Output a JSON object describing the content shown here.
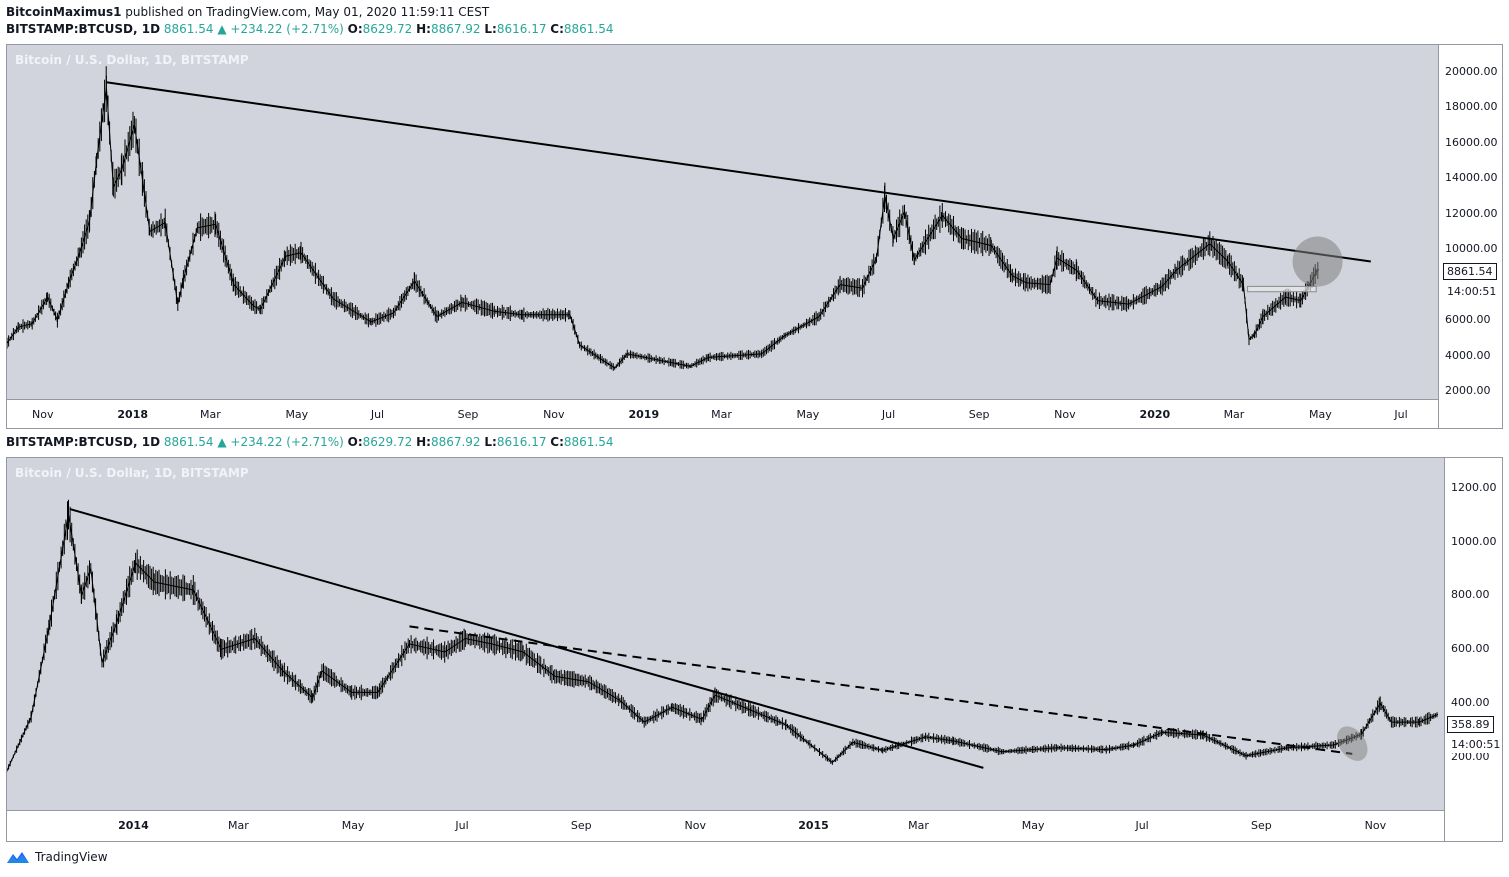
{
  "header": {
    "author": "BitcoinMaximus1",
    "published": "published on TradingView.com, May 01, 2020 11:59:11 CEST"
  },
  "symbol_line": {
    "symbol": "BITSTAMP:BTCUSD, 1D",
    "last": "8861.54",
    "arrow": "▲",
    "change": "+234.22 (+2.71%)",
    "o_label": "O:",
    "o": "8629.72",
    "h_label": "H:",
    "h": "8867.92",
    "l_label": "L:",
    "l": "8616.17",
    "c_label": "C:",
    "c": "8861.54"
  },
  "footer": {
    "brand": "TradingView"
  },
  "colors": {
    "panel_bg": "#d1d4dc",
    "candle": "#000000",
    "value": "#26a69a",
    "circle": "#808080"
  },
  "chart_data": [
    {
      "type": "line",
      "title": "Bitcoin / U.S. Dollar, 1D, BITSTAMP",
      "price_label": "8861.54",
      "countdown": "14:00:51",
      "ylim": [
        1500,
        21500
      ],
      "y_ticks": [
        "20000.00",
        "18000.00",
        "16000.00",
        "14000.00",
        "12000.00",
        "10000.00",
        "6000.00",
        "4000.00",
        "2000.00"
      ],
      "x_ticks": [
        {
          "label": "Nov",
          "date": "2017-11-01",
          "bold": false
        },
        {
          "label": "2018",
          "date": "2018-01-01",
          "bold": true
        },
        {
          "label": "Mar",
          "date": "2018-03-01",
          "bold": false
        },
        {
          "label": "May",
          "date": "2018-05-01",
          "bold": false
        },
        {
          "label": "Jul",
          "date": "2018-07-01",
          "bold": false
        },
        {
          "label": "Sep",
          "date": "2018-09-01",
          "bold": false
        },
        {
          "label": "Nov",
          "date": "2018-11-01",
          "bold": false
        },
        {
          "label": "2019",
          "date": "2019-01-01",
          "bold": true
        },
        {
          "label": "Mar",
          "date": "2019-03-01",
          "bold": false
        },
        {
          "label": "May",
          "date": "2019-05-01",
          "bold": false
        },
        {
          "label": "Jul",
          "date": "2019-07-01",
          "bold": false
        },
        {
          "label": "Sep",
          "date": "2019-09-01",
          "bold": false
        },
        {
          "label": "Nov",
          "date": "2019-11-01",
          "bold": false
        },
        {
          "label": "2020",
          "date": "2020-01-01",
          "bold": true
        },
        {
          "label": "Mar",
          "date": "2020-03-01",
          "bold": false
        },
        {
          "label": "May",
          "date": "2020-05-01",
          "bold": false
        },
        {
          "label": "Jul",
          "date": "2020-07-01",
          "bold": false
        }
      ],
      "xlim": [
        "2017-10-07",
        "2020-07-25"
      ],
      "series": [
        {
          "points": [
            [
              "2017-10-07",
              4700
            ],
            [
              "2017-10-15",
              5600
            ],
            [
              "2017-10-25",
              5800
            ],
            [
              "2017-11-05",
              7300
            ],
            [
              "2017-11-12",
              6000
            ],
            [
              "2017-11-20",
              8100
            ],
            [
              "2017-11-28",
              9800
            ],
            [
              "2017-12-05",
              11600
            ],
            [
              "2017-12-10",
              15000
            ],
            [
              "2017-12-17",
              19100
            ],
            [
              "2017-12-22",
              13500
            ],
            [
              "2017-12-28",
              14500
            ],
            [
              "2018-01-06",
              17000
            ],
            [
              "2018-01-12",
              13800
            ],
            [
              "2018-01-17",
              11000
            ],
            [
              "2018-01-28",
              11500
            ],
            [
              "2018-02-06",
              6900
            ],
            [
              "2018-02-10",
              8300
            ],
            [
              "2018-02-20",
              11200
            ],
            [
              "2018-03-05",
              11400
            ],
            [
              "2018-03-18",
              8000
            ],
            [
              "2018-04-01",
              6800
            ],
            [
              "2018-04-06",
              6600
            ],
            [
              "2018-04-24",
              9600
            ],
            [
              "2018-05-05",
              9800
            ],
            [
              "2018-05-28",
              7200
            ],
            [
              "2018-06-24",
              5900
            ],
            [
              "2018-07-10",
              6400
            ],
            [
              "2018-07-25",
              8200
            ],
            [
              "2018-08-10",
              6200
            ],
            [
              "2018-08-28",
              7000
            ],
            [
              "2018-09-20",
              6500
            ],
            [
              "2018-10-10",
              6300
            ],
            [
              "2018-11-13",
              6300
            ],
            [
              "2018-11-20",
              4600
            ],
            [
              "2018-12-15",
              3300
            ],
            [
              "2018-12-24",
              4100
            ],
            [
              "2019-01-25",
              3600
            ],
            [
              "2019-02-07",
              3400
            ],
            [
              "2019-02-20",
              3900
            ],
            [
              "2019-03-30",
              4100
            ],
            [
              "2019-04-15",
              5100
            ],
            [
              "2019-05-10",
              6200
            ],
            [
              "2019-05-25",
              8000
            ],
            [
              "2019-06-10",
              7800
            ],
            [
              "2019-06-20",
              9500
            ],
            [
              "2019-06-26",
              13000
            ],
            [
              "2019-07-02",
              10600
            ],
            [
              "2019-07-10",
              12100
            ],
            [
              "2019-07-17",
              9400
            ],
            [
              "2019-08-06",
              11900
            ],
            [
              "2019-08-20",
              10600
            ],
            [
              "2019-09-10",
              10200
            ],
            [
              "2019-09-25",
              8500
            ],
            [
              "2019-10-05",
              8100
            ],
            [
              "2019-10-22",
              8000
            ],
            [
              "2019-10-27",
              9500
            ],
            [
              "2019-11-10",
              8800
            ],
            [
              "2019-11-25",
              7100
            ],
            [
              "2019-12-17",
              6900
            ],
            [
              "2020-01-10",
              7900
            ],
            [
              "2020-01-20",
              8800
            ],
            [
              "2020-02-13",
              10300
            ],
            [
              "2020-02-26",
              9300
            ],
            [
              "2020-03-08",
              8000
            ],
            [
              "2020-03-12",
              4900
            ],
            [
              "2020-03-16",
              5200
            ],
            [
              "2020-03-22",
              6200
            ],
            [
              "2020-04-07",
              7300
            ],
            [
              "2020-04-18",
              7100
            ],
            [
              "2020-04-29",
              8700
            ],
            [
              "2020-05-01",
              8861
            ]
          ]
        }
      ],
      "annotations": {
        "trendline": {
          "from": [
            "2017-12-17",
            19400
          ],
          "to": [
            "2020-06-07",
            9300
          ]
        },
        "range_box": {
          "from_date": "2020-03-11",
          "to_date": "2020-04-29",
          "price_top": 7900,
          "price_bottom": 7600
        },
        "circle": {
          "center": [
            "2020-04-30",
            9300
          ]
        }
      }
    },
    {
      "type": "line",
      "title": "Bitcoin / U.S. Dollar, 1D, BITSTAMP",
      "price_label": "358.89",
      "countdown": "14:00:51",
      "ylim": [
        0,
        1310
      ],
      "y_ticks": [
        "1200.00",
        "1000.00",
        "800.00",
        "600.00",
        "400.00",
        "200.00"
      ],
      "x_ticks": [
        {
          "label": "2014",
          "date": "2014-01-01",
          "bold": true
        },
        {
          "label": "Mar",
          "date": "2014-03-01",
          "bold": false
        },
        {
          "label": "May",
          "date": "2014-05-01",
          "bold": false
        },
        {
          "label": "Jul",
          "date": "2014-07-01",
          "bold": false
        },
        {
          "label": "Sep",
          "date": "2014-09-01",
          "bold": false
        },
        {
          "label": "Nov",
          "date": "2014-11-01",
          "bold": false
        },
        {
          "label": "2015",
          "date": "2015-01-01",
          "bold": true
        },
        {
          "label": "Mar",
          "date": "2015-03-01",
          "bold": false
        },
        {
          "label": "May",
          "date": "2015-05-01",
          "bold": false
        },
        {
          "label": "Jul",
          "date": "2015-07-01",
          "bold": false
        },
        {
          "label": "Sep",
          "date": "2015-09-01",
          "bold": false
        },
        {
          "label": "Nov",
          "date": "2015-11-01",
          "bold": false
        }
      ],
      "xlim": [
        "2013-10-28",
        "2015-12-05"
      ],
      "series": [
        {
          "points": [
            [
              "2013-10-28",
              150
            ],
            [
              "2013-11-10",
              350
            ],
            [
              "2013-11-20",
              700
            ],
            [
              "2013-11-30",
              1100
            ],
            [
              "2013-12-07",
              800
            ],
            [
              "2013-12-12",
              900
            ],
            [
              "2013-12-18",
              550
            ],
            [
              "2013-12-26",
              700
            ],
            [
              "2014-01-05",
              920
            ],
            [
              "2014-01-15",
              850
            ],
            [
              "2014-02-05",
              820
            ],
            [
              "2014-02-20",
              600
            ],
            [
              "2014-03-10",
              640
            ],
            [
              "2014-03-25",
              520
            ],
            [
              "2014-04-10",
              420
            ],
            [
              "2014-04-15",
              520
            ],
            [
              "2014-05-01",
              440
            ],
            [
              "2014-05-15",
              440
            ],
            [
              "2014-06-01",
              620
            ],
            [
              "2014-06-20",
              590
            ],
            [
              "2014-07-01",
              640
            ],
            [
              "2014-07-15",
              620
            ],
            [
              "2014-08-01",
              590
            ],
            [
              "2014-08-18",
              500
            ],
            [
              "2014-09-05",
              480
            ],
            [
              "2014-09-22",
              410
            ],
            [
              "2014-10-05",
              330
            ],
            [
              "2014-10-20",
              385
            ],
            [
              "2014-11-05",
              340
            ],
            [
              "2014-11-12",
              430
            ],
            [
              "2014-12-01",
              375
            ],
            [
              "2014-12-20",
              320
            ],
            [
              "2015-01-14",
              180
            ],
            [
              "2015-01-25",
              255
            ],
            [
              "2015-02-10",
              225
            ],
            [
              "2015-03-05",
              275
            ],
            [
              "2015-03-20",
              260
            ],
            [
              "2015-04-15",
              220
            ],
            [
              "2015-05-15",
              235
            ],
            [
              "2015-06-10",
              228
            ],
            [
              "2015-06-25",
              245
            ],
            [
              "2015-07-10",
              292
            ],
            [
              "2015-08-01",
              282
            ],
            [
              "2015-08-24",
              205
            ],
            [
              "2015-09-15",
              235
            ],
            [
              "2015-10-10",
              245
            ],
            [
              "2015-10-25",
              285
            ],
            [
              "2015-11-04",
              400
            ],
            [
              "2015-11-10",
              330
            ],
            [
              "2015-11-25",
              330
            ],
            [
              "2015-12-05",
              359
            ]
          ]
        }
      ],
      "annotations": {
        "trendline": {
          "from": [
            "2013-12-01",
            1120
          ],
          "to": [
            "2015-04-05",
            160
          ]
        },
        "dashed_trendline": {
          "from": [
            "2014-06-01",
            685
          ],
          "to": [
            "2015-10-20",
            212
          ]
        },
        "ellipse": {
          "center": [
            "2015-10-20",
            250
          ]
        }
      }
    }
  ]
}
